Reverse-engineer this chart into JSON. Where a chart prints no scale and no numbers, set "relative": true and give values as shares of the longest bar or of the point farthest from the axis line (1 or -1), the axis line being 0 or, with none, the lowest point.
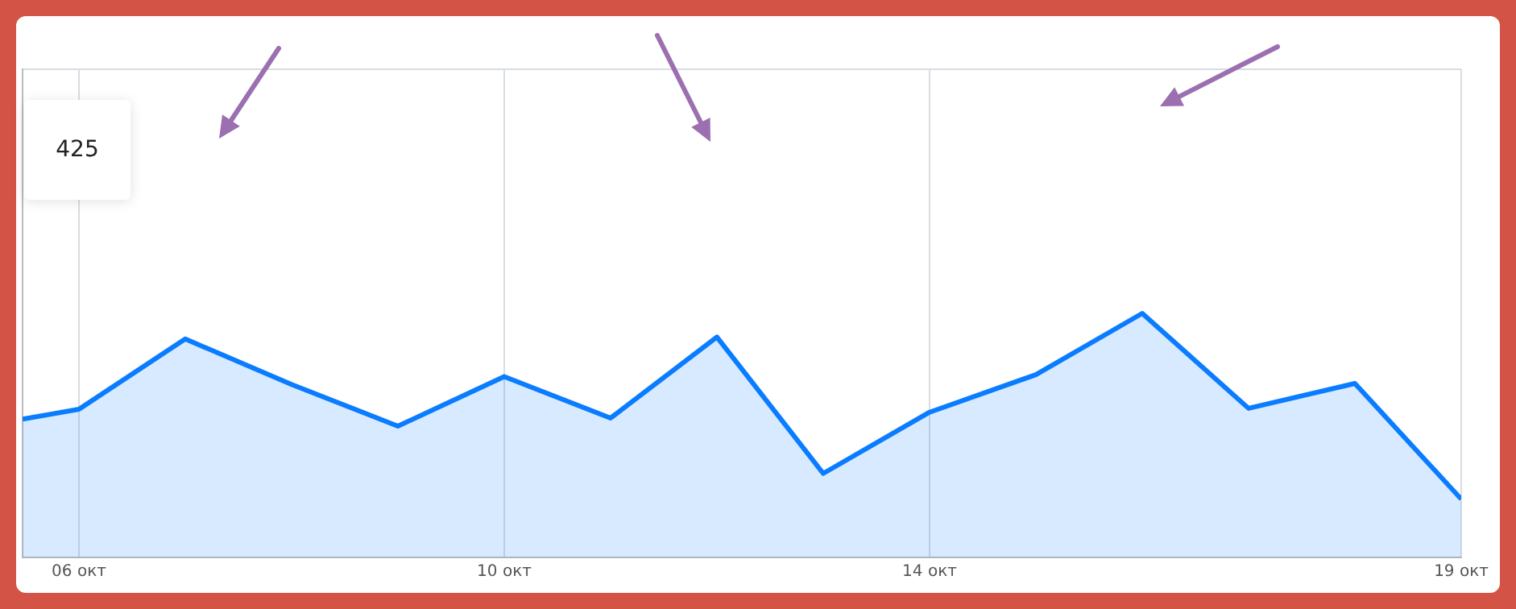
{
  "chart_data": {
    "type": "area",
    "relative": true,
    "x": [
      5.47,
      6,
      7,
      8,
      9,
      10,
      11,
      12,
      13,
      14,
      15,
      16,
      17,
      18,
      19
    ],
    "series": [
      {
        "color": "#0a7cff",
        "values": [
          0.567,
          0.607,
          0.895,
          0.709,
          0.538,
          0.741,
          0.571,
          0.903,
          0.344,
          0.595,
          0.749,
          1,
          0.611,
          0.713,
          0.239
        ]
      }
    ],
    "xlim": [
      5.47,
      19
    ],
    "xticks": [
      {
        "value": 6,
        "label": "06 окт"
      },
      {
        "value": 10,
        "label": "10 окт"
      },
      {
        "value": 14,
        "label": "14 окт"
      },
      {
        "value": 19,
        "label": "19 окт"
      }
    ],
    "grid": true,
    "legend": false,
    "marker": "none",
    "line_style": "solid",
    "annotations": [
      "425"
    ]
  }
}
